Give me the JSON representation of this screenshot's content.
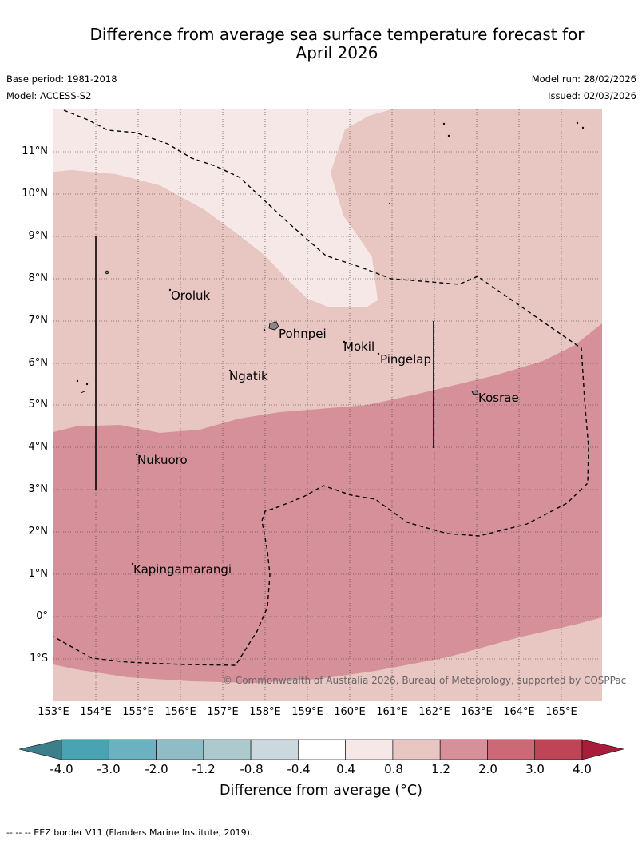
{
  "title_line1": "Difference from average sea surface temperature forecast for",
  "title_line2": "April 2026",
  "base_period": "Base period: 1981-2018",
  "model": "Model: ACCESS-S2",
  "model_run": "Model run: 28/02/2026",
  "issued": "Issued: 02/03/2026",
  "lat_labels": [
    "11°N",
    "10°N",
    "9°N",
    "8°N",
    "7°N",
    "6°N",
    "5°N",
    "4°N",
    "3°N",
    "2°N",
    "1°N",
    "0°",
    "1°S"
  ],
  "lon_labels": [
    "153°E",
    "154°E",
    "155°E",
    "156°E",
    "157°E",
    "158°E",
    "159°E",
    "160°E",
    "161°E",
    "162°E",
    "163°E",
    "164°E",
    "165°E"
  ],
  "places": {
    "oroluk": "Oroluk",
    "pohnpei": "Pohnpei",
    "mokil": "Mokil",
    "pingelap": "Pingelap",
    "ngatik": "Ngatik",
    "kosrae": "Kosrae",
    "nukuoro": "Nukuoro",
    "kapingamarangi": "Kapingamarangi"
  },
  "copyright": "© Commonwealth of Australia 2026, Bureau of Meteorology, supported by COSPPac",
  "colorbar": {
    "ticks": [
      "-4.0",
      "-3.0",
      "-2.0",
      "-1.2",
      "-0.8",
      "-0.4",
      "0.4",
      "0.8",
      "1.2",
      "2.0",
      "3.0",
      "4.0"
    ],
    "colors": [
      "#3c7f8b",
      "#4aa3b3",
      "#6cb1c0",
      "#8ebcc7",
      "#acc9ce",
      "#cbd9de",
      "#ffffff",
      "#f5e8e7",
      "#e8c6c2",
      "#d69099",
      "#cb6a76",
      "#bd4556",
      "#a81d3a"
    ],
    "label": "Difference from average (°C)"
  },
  "footnote": "-- -- -- EEZ border V11 (Flanders Marine Institute, 2019)."
}
